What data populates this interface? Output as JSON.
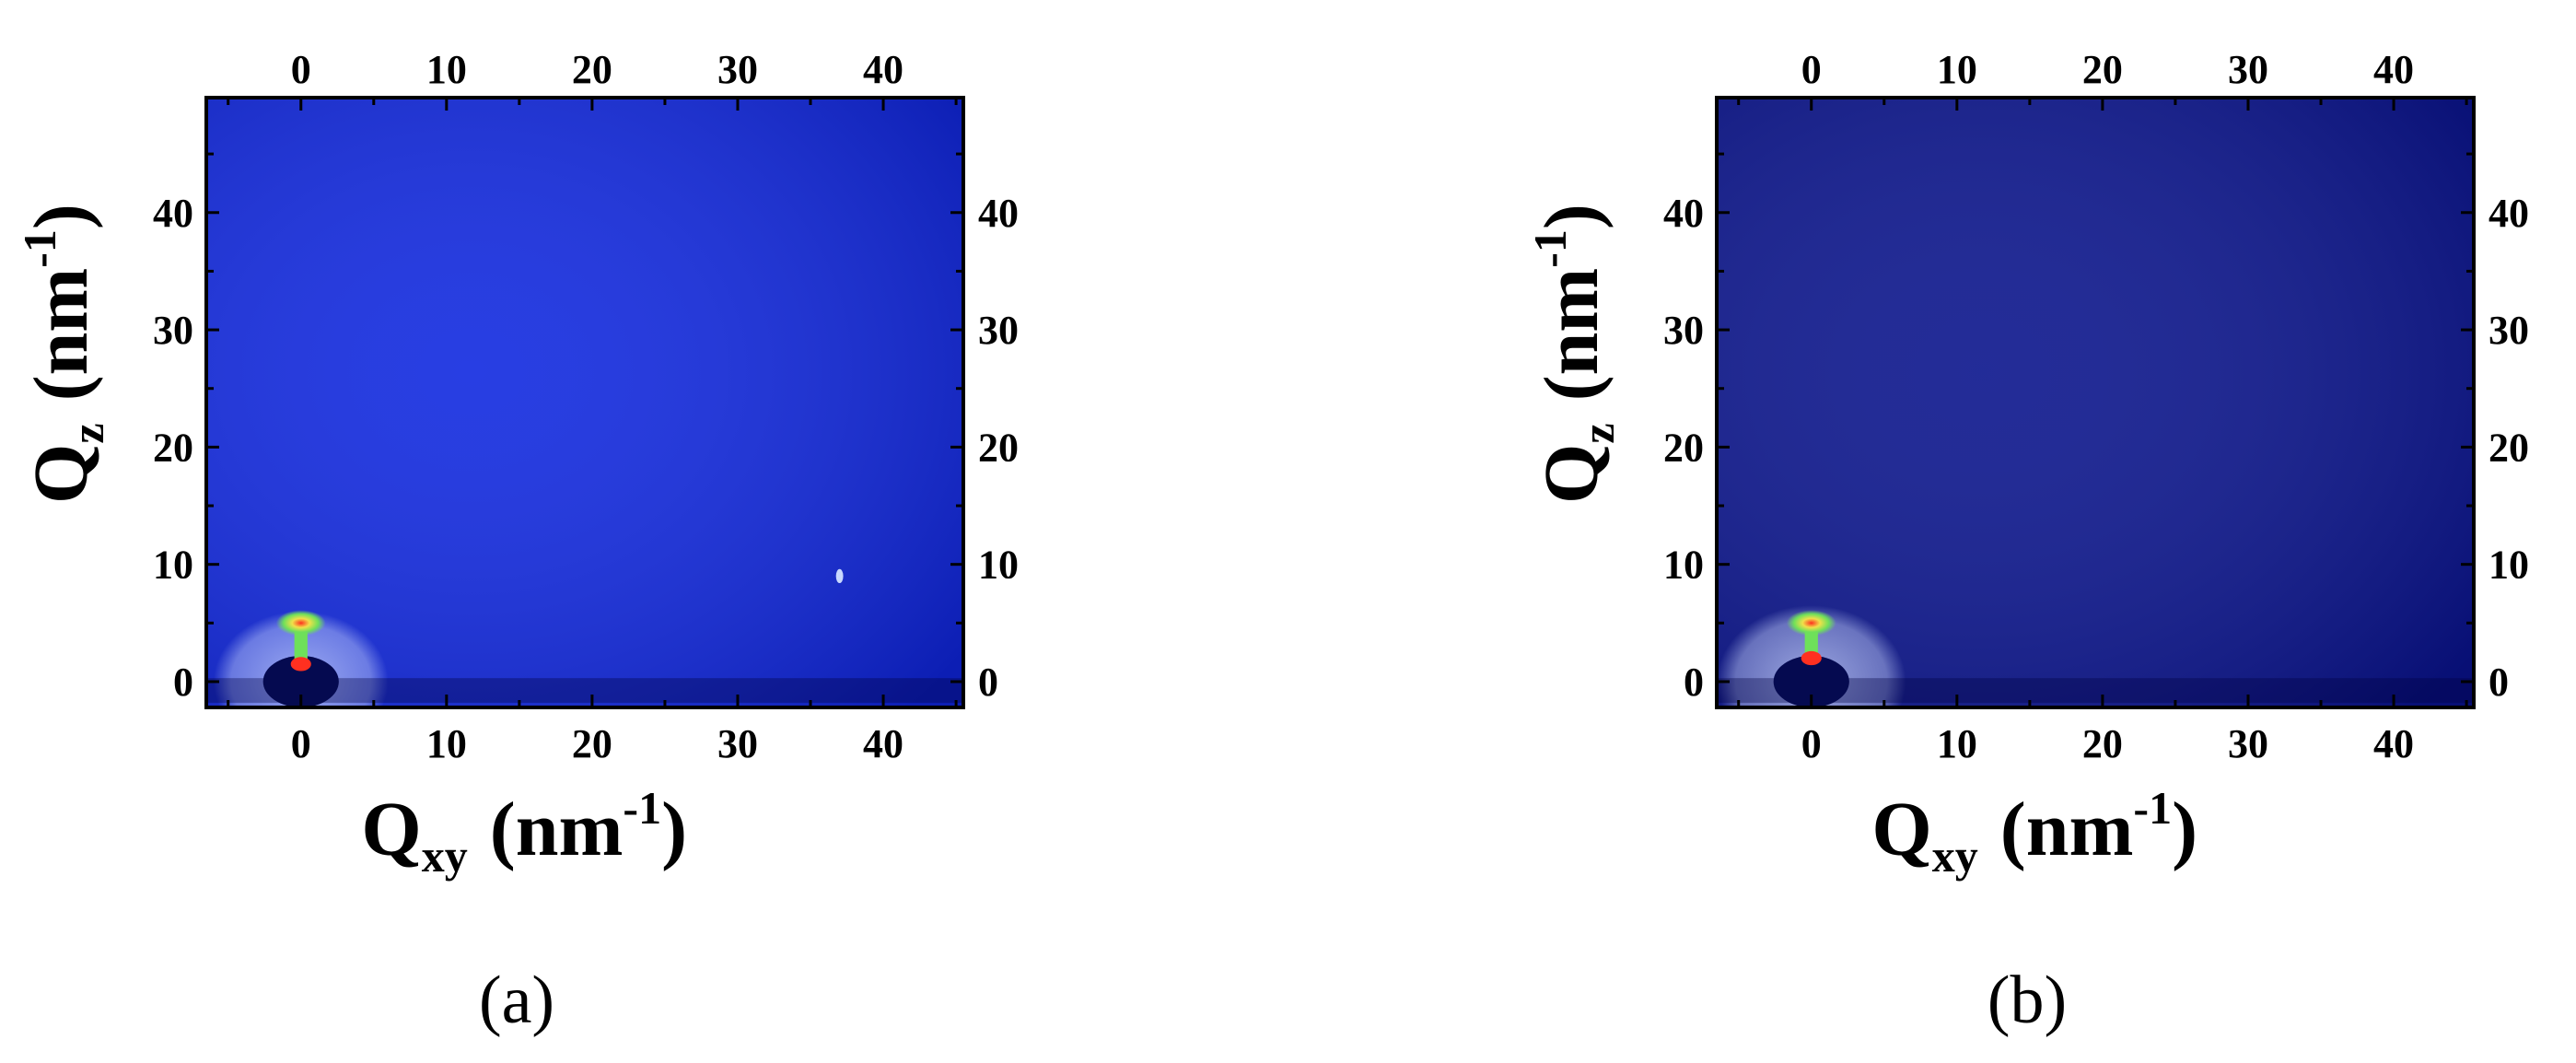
{
  "chart_data": [
    {
      "type": "heatmap",
      "caption": "(a)",
      "xlabel": {
        "main": "Q",
        "sub": "xy",
        "units": "(nm",
        "exp": "-1",
        "close": ")"
      },
      "ylabel": {
        "main": "Q",
        "sub": "z",
        "units": "(nm",
        "exp": "-1",
        "close": ")"
      },
      "xlim": [
        -6.5,
        45.5
      ],
      "ylim": [
        -2.2,
        49.8
      ],
      "xticks": [
        0,
        10,
        20,
        30,
        40
      ],
      "yticks": [
        0,
        10,
        20,
        30,
        40
      ],
      "tick_labels_top": [
        "0",
        "10",
        "20",
        "30",
        "40"
      ],
      "tick_labels_bottom": [
        "0",
        "10",
        "20",
        "30",
        "40"
      ],
      "tick_labels_left": [
        "0",
        "10",
        "20",
        "30",
        "40"
      ],
      "tick_labels_right": [
        "0",
        "10",
        "20",
        "30",
        "40"
      ],
      "background_color": "#1028e0",
      "features": {
        "beamstop_center": [
          0,
          0
        ],
        "scattering_ring_radius": 6,
        "hotspot_center": [
          0,
          5
        ],
        "streak": [
          0,
          1.5
        ],
        "artifact": [
          37,
          9
        ]
      },
      "colors": {
        "ring": "#c8d4ff",
        "hot_outer": "#6ee05a",
        "hot_inner": "#f0e04a",
        "hot_core": "#ff3020",
        "beamstop": "#050a50"
      }
    },
    {
      "type": "heatmap",
      "caption": "(b)",
      "xlabel": {
        "main": "Q",
        "sub": "xy",
        "units": "(nm",
        "exp": "-1",
        "close": ")"
      },
      "ylabel": {
        "main": "Q",
        "sub": "z",
        "units": "(nm",
        "exp": "-1",
        "close": ")"
      },
      "xlim": [
        -6.5,
        45.5
      ],
      "ylim": [
        -2.2,
        49.8
      ],
      "xticks": [
        0,
        10,
        20,
        30,
        40
      ],
      "yticks": [
        0,
        10,
        20,
        30,
        40
      ],
      "tick_labels_top": [
        "0",
        "10",
        "20",
        "30",
        "40"
      ],
      "tick_labels_bottom": [
        "0",
        "10",
        "20",
        "30",
        "40"
      ],
      "tick_labels_left": [
        "0",
        "10",
        "20",
        "30",
        "40"
      ],
      "tick_labels_right": [
        "0",
        "10",
        "20",
        "30",
        "40"
      ],
      "background_color": "#0a148c",
      "features": {
        "beamstop_center": [
          0,
          0
        ],
        "scattering_ring_radius": 6.5,
        "hotspot_center": [
          0,
          5
        ],
        "streak": [
          0,
          2
        ]
      },
      "colors": {
        "ring": "#c8d4ff",
        "hot_outer": "#6ee05a",
        "hot_inner": "#f0e04a",
        "hot_core": "#ff3020",
        "beamstop": "#050a50"
      }
    }
  ]
}
